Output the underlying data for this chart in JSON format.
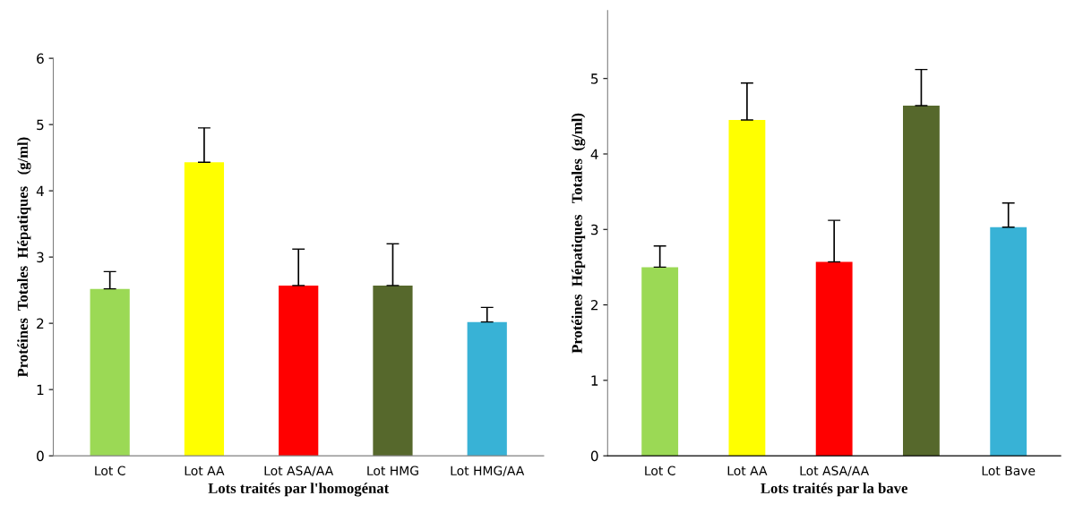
{
  "chart_data": [
    {
      "type": "bar",
      "xlabel": "Lots traités par l'homogénat",
      "ylabel": "Protéines  Totales  Hépatiques   (g/ml)",
      "categories": [
        "Lot C",
        "Lot AA",
        "Lot ASA/AA",
        "Lot HMG",
        "Lot HMG/AA"
      ],
      "values": [
        2.52,
        4.43,
        2.57,
        2.57,
        2.02
      ],
      "colors": [
        "#9bd955",
        "#ffff00",
        "#ff0000",
        "#56682c",
        "#38b2d6"
      ],
      "errors": [
        [
          2.52,
          2.78
        ],
        [
          4.43,
          4.95
        ],
        [
          2.57,
          3.12
        ],
        [
          2.57,
          3.2
        ],
        [
          2.02,
          2.24
        ]
      ],
      "ylim": [
        0,
        6
      ],
      "yticks": [
        0,
        1,
        2,
        3,
        4,
        5,
        6
      ],
      "grid": false,
      "legend": false
    },
    {
      "type": "bar",
      "xlabel": "Lots traités par la bave",
      "ylabel": "Protéines  Hépatiques   Totales  (g/ml)",
      "categories": [
        "Lot C",
        "Lot AA",
        "Lot ASA/AA",
        null,
        "Lot Bave"
      ],
      "values": [
        2.5,
        4.45,
        2.57,
        4.64,
        3.03
      ],
      "colors": [
        "#9bd955",
        "#ffff00",
        "#ff0000",
        "#56682c",
        "#38b2d6"
      ],
      "errors": [
        [
          2.5,
          2.78
        ],
        [
          4.45,
          4.94
        ],
        [
          2.57,
          3.12
        ],
        [
          4.64,
          5.12
        ],
        [
          3.03,
          3.35
        ]
      ],
      "ylim": [
        0,
        5.9
      ],
      "yticks": [
        0,
        1,
        2,
        3,
        4,
        5
      ],
      "grid": false,
      "legend": false
    }
  ]
}
